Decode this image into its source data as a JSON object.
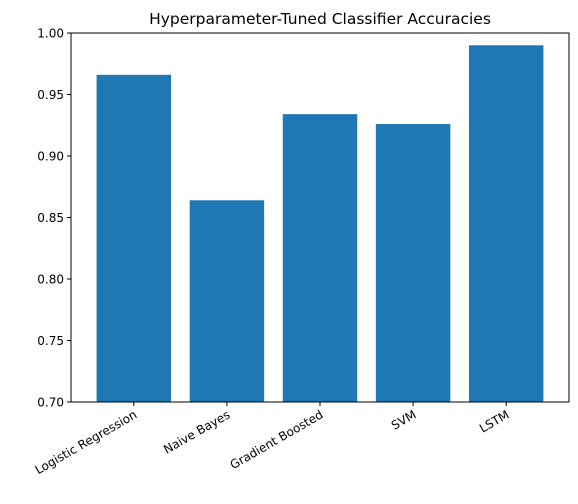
{
  "chart_data": {
    "type": "bar",
    "title": "Hyperparameter-Tuned Classifier Accuracies",
    "xlabel": "",
    "ylabel": "",
    "categories": [
      "Logistic Regression",
      "Naive Bayes",
      "Gradient Boosted",
      "SVM",
      "LSTM"
    ],
    "values": [
      0.966,
      0.864,
      0.934,
      0.926,
      0.99
    ],
    "ylim": [
      0.7,
      1.0
    ],
    "yticks": [
      "0.70",
      "0.75",
      "0.80",
      "0.85",
      "0.90",
      "0.95",
      "1.00"
    ],
    "grid": false,
    "legend": "none",
    "bar_color": "#1f77b4"
  }
}
